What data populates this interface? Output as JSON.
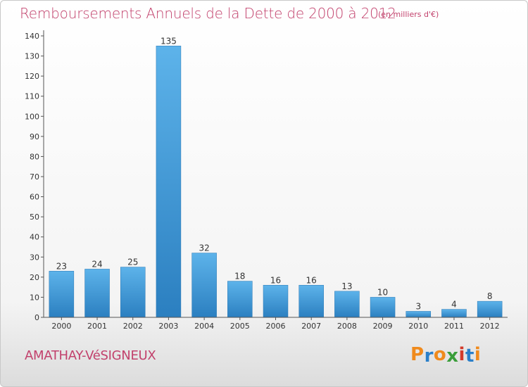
{
  "header": {
    "title": "Remboursements Annuels de la Dette de 2000 à 2012",
    "subtitle": "(en milliers d'€)"
  },
  "footer": {
    "commune": "AMATHAY-VéSIGNEUX",
    "logo_letters": [
      "P",
      "r",
      "o",
      "x",
      "i",
      "t",
      "i"
    ]
  },
  "colors": {
    "title": "#c2416c",
    "bar_top": "#5db3ea",
    "bar_bottom": "#2b7fc0",
    "logo": [
      "#f08a1c",
      "#2a7fc9",
      "#f08a1c",
      "#3a9d3a",
      "#d43a2a",
      "#2a7fc9",
      "#f08a1c"
    ]
  },
  "chart_data": {
    "type": "bar",
    "title": "Remboursements Annuels de la Dette de 2000 à 2012",
    "subtitle": "(en milliers d'€)",
    "categories": [
      "2000",
      "2001",
      "2002",
      "2003",
      "2004",
      "2005",
      "2006",
      "2007",
      "2008",
      "2009",
      "2010",
      "2011",
      "2012"
    ],
    "values": [
      23,
      24,
      25,
      135,
      32,
      18,
      16,
      16,
      13,
      10,
      3,
      4,
      8
    ],
    "ylim": [
      0,
      140
    ],
    "yticks": [
      0,
      10,
      20,
      30,
      40,
      50,
      60,
      70,
      80,
      90,
      100,
      110,
      120,
      130,
      140
    ],
    "grid": false,
    "legend": "none"
  }
}
